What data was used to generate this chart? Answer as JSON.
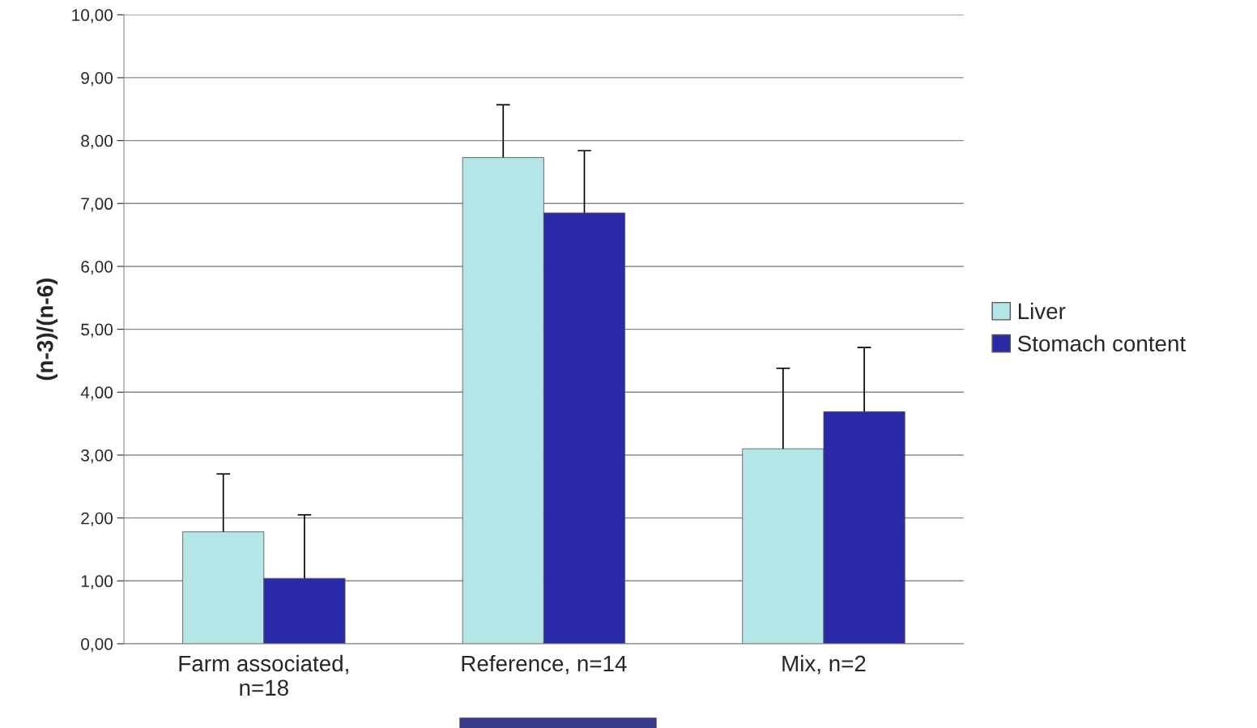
{
  "chart_data": {
    "type": "bar",
    "ylabel": "(n-3)/(n-6)",
    "categories": [
      "Farm associated,\nn=18",
      "Reference, n=14",
      "Mix, n=2"
    ],
    "series": [
      {
        "name": "Liver",
        "color": "#b4e6e8",
        "values": [
          1.78,
          7.73,
          3.1
        ],
        "errors": [
          [
            1.78,
            2.7
          ],
          [
            7.73,
            8.57
          ],
          [
            3.1,
            4.38
          ]
        ]
      },
      {
        "name": "Stomach content",
        "color": "#2a2aa8",
        "values": [
          1.04,
          6.85,
          3.69
        ],
        "errors": [
          [
            1.04,
            2.05
          ],
          [
            6.85,
            7.84
          ],
          [
            3.69,
            4.71
          ]
        ]
      }
    ],
    "ylim": [
      0,
      10
    ],
    "yticks": [
      {
        "value": 0,
        "label": "0,00"
      },
      {
        "value": 1,
        "label": "1,00"
      },
      {
        "value": 2,
        "label": "2,00"
      },
      {
        "value": 3,
        "label": "3,00"
      },
      {
        "value": 4,
        "label": "4,00"
      },
      {
        "value": 5,
        "label": "5,00"
      },
      {
        "value": 6,
        "label": "6,00"
      },
      {
        "value": 7,
        "label": "7,00"
      },
      {
        "value": 8,
        "label": "8,00"
      },
      {
        "value": 9,
        "label": "9,00"
      },
      {
        "value": 10,
        "label": "10,00"
      }
    ],
    "grid": "y",
    "legend": "right"
  }
}
